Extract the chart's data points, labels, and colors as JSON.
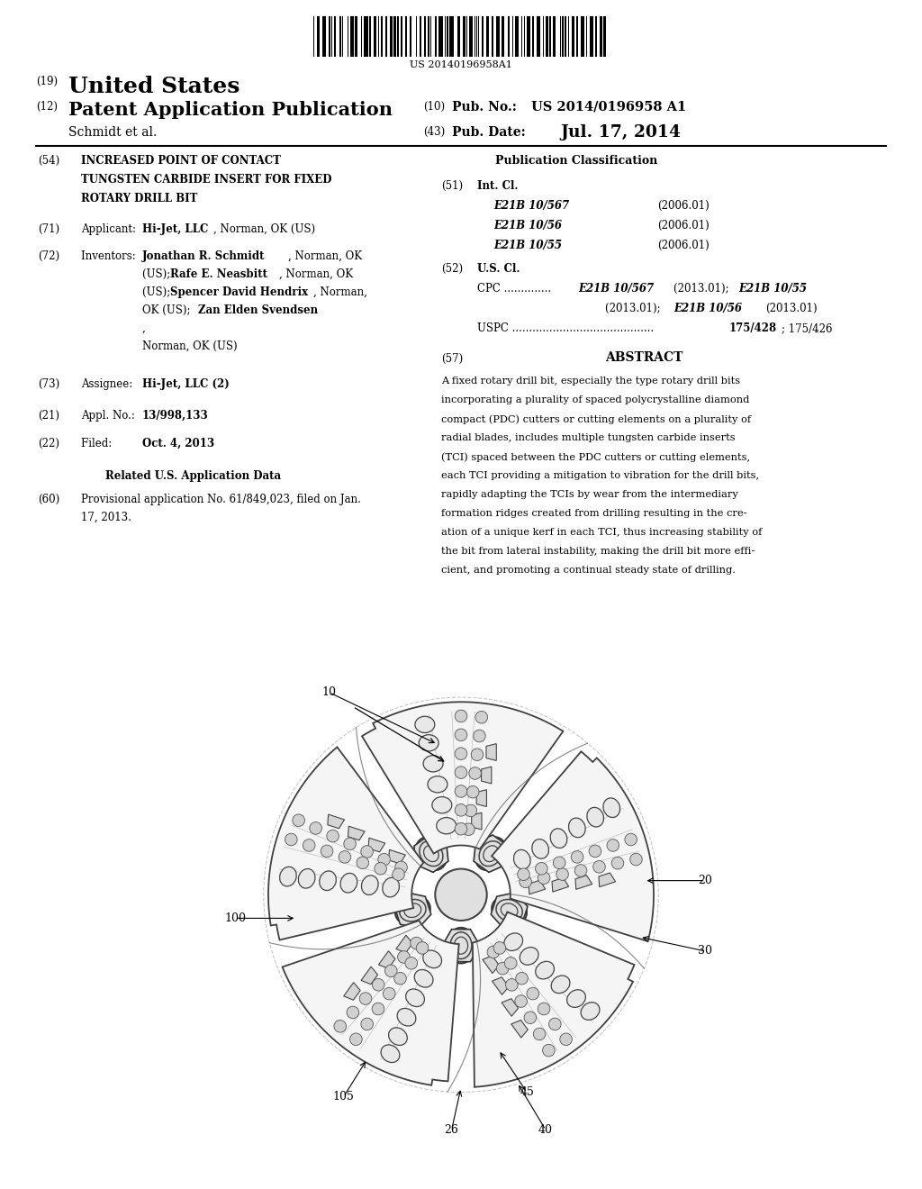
{
  "bg_color": "#ffffff",
  "barcode_text": "US 20140196958A1",
  "text_color": "#000000",
  "abstract_lines": [
    "A fixed rotary drill bit, especially the type rotary drill bits",
    "incorporating a plurality of spaced polycrystalline diamond",
    "compact (PDC) cutters or cutting elements on a plurality of",
    "radial blades, includes multiple tungsten carbide inserts",
    "(TCI) spaced between the PDC cutters or cutting elements,",
    "each TCI providing a mitigation to vibration for the drill bits,",
    "rapidly adapting the TCIs by wear from the intermediary",
    "formation ridges created from drilling resulting in the cre-",
    "ation of a unique kerf in each TCI, thus increasing stability of",
    "the bit from lateral instability, making the drill bit more effi-",
    "cient, and promoting a continual steady state of drilling."
  ],
  "int_cl_entries": [
    [
      "E21B 10/567",
      "(2006.01)"
    ],
    [
      "E21B 10/56",
      "(2006.01)"
    ],
    [
      "E21B 10/55",
      "(2006.01)"
    ]
  ]
}
